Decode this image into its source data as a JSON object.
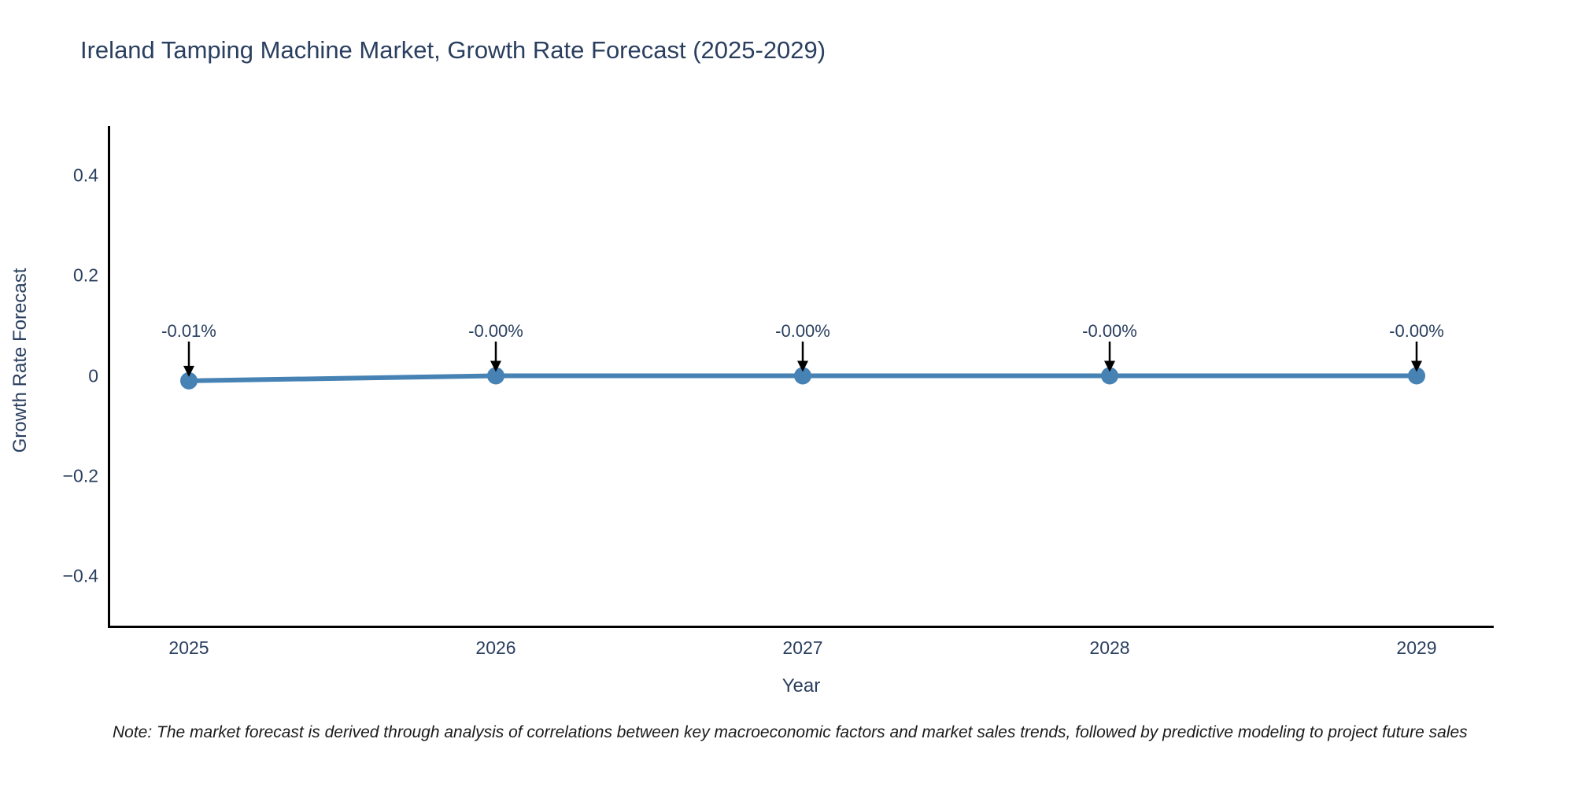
{
  "title": "Ireland Tamping Machine Market, Growth Rate Forecast (2025-2029)",
  "note": {
    "text": "Note: The market forecast is derived through analysis of correlations between key macroeconomic factors and market sales trends, followed by predictive modeling to project future sales"
  },
  "colors": {
    "line": "#4682b4",
    "marker": "#4682b4",
    "arrow": "#000000",
    "axis_line": "#000000",
    "text": "#2a3f5f"
  },
  "chart_data": {
    "type": "line",
    "title": "Ireland Tamping Machine Market, Growth Rate Forecast (2025-2029)",
    "xlabel": "Year",
    "ylabel": "Growth Rate Forecast",
    "categories": [
      "2025",
      "2026",
      "2027",
      "2028",
      "2029"
    ],
    "series": [
      {
        "name": "Growth Rate Forecast",
        "values": [
          -0.01,
          -0.0,
          -0.0,
          -0.0,
          -0.0
        ],
        "point_labels": [
          "-0.01%",
          "-0.00%",
          "-0.00%",
          "-0.00%",
          "-0.00%"
        ]
      }
    ],
    "ylim": [
      -0.5,
      0.5
    ],
    "yticks": [
      {
        "value": 0.4,
        "label": "0.4"
      },
      {
        "value": 0.2,
        "label": "0.2"
      },
      {
        "value": 0.0,
        "label": "0"
      },
      {
        "value": -0.2,
        "label": "−0.2"
      },
      {
        "value": -0.4,
        "label": "−0.4"
      }
    ],
    "grid": false,
    "legend_position": "none",
    "annotations_have_arrows": true
  }
}
